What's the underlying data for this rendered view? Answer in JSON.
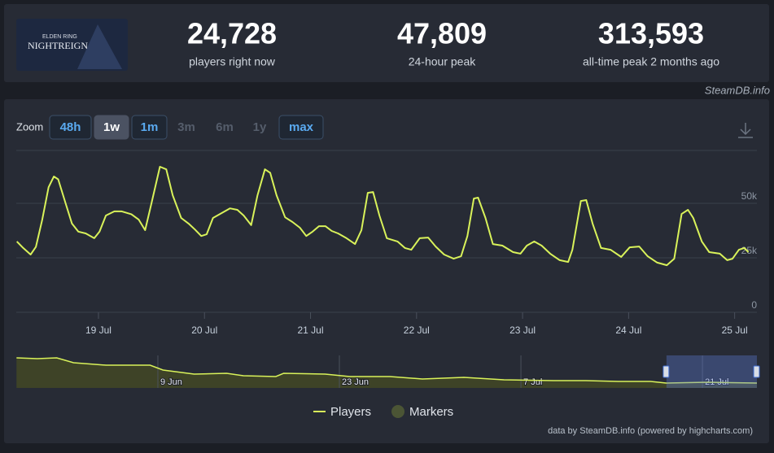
{
  "header": {
    "logo": {
      "line1": "ELDEN RING",
      "line2": "NIGHTREIGN"
    },
    "stats": [
      {
        "value": "24,728",
        "label": "players right now"
      },
      {
        "value": "47,809",
        "label": "24-hour peak"
      },
      {
        "value": "313,593",
        "label": "all-time peak 2 months ago"
      }
    ],
    "source": "SteamDB.info"
  },
  "zoom": {
    "label": "Zoom",
    "buttons": [
      {
        "label": "48h",
        "state": "enabled"
      },
      {
        "label": "1w",
        "state": "active"
      },
      {
        "label": "1m",
        "state": "enabled"
      },
      {
        "label": "3m",
        "state": "disabled"
      },
      {
        "label": "6m",
        "state": "disabled"
      },
      {
        "label": "1y",
        "state": "disabled"
      },
      {
        "label": "max",
        "state": "enabled"
      }
    ]
  },
  "chart_data": [
    {
      "type": "line",
      "x": [
        199.23,
        199.29,
        199.36,
        199.41,
        199.47,
        199.53,
        199.58,
        199.62,
        199.69,
        199.75,
        199.81,
        199.88,
        199.96,
        200.01,
        200.07,
        200.15,
        200.22,
        200.31,
        200.38,
        200.44,
        200.5,
        200.58,
        200.64,
        200.7,
        200.78,
        200.85,
        200.91,
        200.97,
        201.02,
        201.08,
        201.16,
        201.24,
        201.31,
        201.37,
        201.44,
        201.5,
        201.57,
        201.62,
        201.68,
        201.76,
        201.83,
        201.9,
        201.96,
        202.02,
        202.08,
        202.14,
        202.2,
        202.26,
        202.34,
        202.42,
        202.48,
        202.54,
        202.59,
        202.65,
        202.72,
        202.82,
        202.89,
        202.95,
        203.03,
        203.11,
        203.18,
        203.26,
        203.35,
        203.42,
        203.48,
        203.54,
        203.58,
        203.65,
        203.72,
        203.81,
        203.91,
        203.98,
        204.04,
        204.11,
        204.18,
        204.26,
        204.35,
        204.43,
        204.47,
        204.55,
        204.6,
        204.66,
        204.74,
        204.83,
        204.93,
        205.01,
        205.1,
        205.18,
        205.27,
        205.36,
        205.43,
        205.5,
        205.56,
        205.61,
        205.69,
        205.76,
        205.86,
        205.93,
        205.98,
        206.04,
        206.09,
        206.13
      ],
      "series": [
        {
          "name": "Players",
          "color": "#d9f25a",
          "values": [
            32500,
            29500,
            26500,
            30000,
            42500,
            57400,
            62300,
            61000,
            50000,
            40700,
            37000,
            36200,
            34000,
            37000,
            44400,
            46300,
            46300,
            45000,
            42500,
            37700,
            50000,
            66800,
            65600,
            53700,
            43300,
            40700,
            38000,
            35000,
            35800,
            43300,
            45500,
            47700,
            47000,
            44400,
            40000,
            53700,
            65600,
            64000,
            53700,
            43600,
            41400,
            38800,
            35000,
            37000,
            39500,
            39500,
            37300,
            36200,
            34000,
            31300,
            37700,
            54800,
            55200,
            44400,
            34000,
            32500,
            29500,
            28700,
            34000,
            34300,
            30200,
            26500,
            24600,
            25700,
            35000,
            52200,
            52600,
            43300,
            31300,
            30600,
            27600,
            26900,
            30600,
            32500,
            30600,
            26900,
            23900,
            23100,
            28700,
            51100,
            51500,
            40700,
            29500,
            28700,
            25400,
            29800,
            30200,
            25700,
            22800,
            21600,
            24600,
            45100,
            47000,
            43300,
            32500,
            27600,
            26900,
            23900,
            24600,
            28700,
            29500,
            27600
          ]
        }
      ],
      "markers": {
        "name": "Markers",
        "color": "#4b5535"
      },
      "xlim": [
        199.225,
        206.21
      ],
      "xticks": [
        {
          "value": 200,
          "label": "19 Jul"
        },
        {
          "value": 201,
          "label": "20 Jul"
        },
        {
          "value": 202,
          "label": "21 Jul"
        },
        {
          "value": 203,
          "label": "22 Jul"
        },
        {
          "value": 204,
          "label": "23 Jul"
        },
        {
          "value": 205,
          "label": "24 Jul"
        },
        {
          "value": 206,
          "label": "25 Jul"
        }
      ],
      "ylim": [
        0,
        75000
      ],
      "yticks": [
        0,
        {
          "value": 25000,
          "label": "25k"
        },
        {
          "value": 50000,
          "label": "50k"
        }
      ],
      "grid": true
    },
    {
      "type": "area",
      "x": [
        149.1,
        150.7,
        152.2,
        153.5,
        156,
        157.9,
        159.4,
        160.4,
        162.8,
        165.3,
        166.6,
        169.1,
        169.7,
        172.9,
        174.8,
        177.9,
        180.4,
        183.6,
        186.7,
        190.5,
        193,
        195.5,
        198,
        199.2,
        202.4,
        206.2
      ],
      "values": [
        296000,
        288000,
        296000,
        248000,
        224000,
        224000,
        224000,
        176000,
        136000,
        144000,
        120000,
        112000,
        144000,
        136000,
        112000,
        112000,
        88000,
        104000,
        80000,
        72000,
        72000,
        64000,
        64000,
        48000,
        56000,
        48000
      ],
      "color": "#d9f25a",
      "fill": "#3e4327",
      "xlim": [
        149.08,
        206.2
      ],
      "ylim": [
        0,
        320000
      ],
      "xticks": [
        {
          "value": 160,
          "label": "9 Jun"
        },
        {
          "value": 174,
          "label": "23 Jun"
        },
        {
          "value": 188,
          "label": "7 Jul"
        },
        {
          "value": 202,
          "label": "21 Jul"
        }
      ]
    }
  ],
  "credit": "data by SteamDB.info (powered by highcharts.com)"
}
